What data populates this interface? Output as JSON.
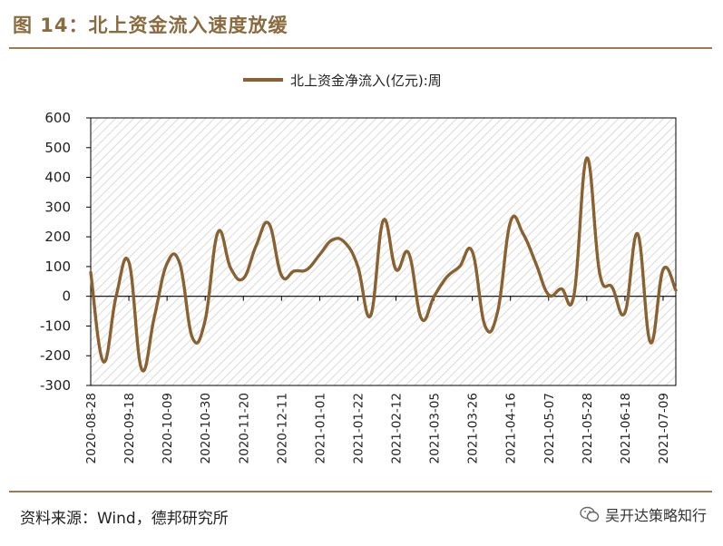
{
  "figure": {
    "title": "图 14：北上资金流入速度放缓",
    "source": "资料来源：Wind，德邦研究所",
    "watermark": "吴开达策略知行",
    "watermark_icon": "wechat-icon"
  },
  "colors": {
    "accent": "#8B6A3E",
    "line": "#8A6232",
    "rule": "#9E7B53",
    "hatch": "#DADADA"
  },
  "chart_data": {
    "type": "line",
    "legend": "北上资金净流入(亿元):周",
    "legend_position": "top-center",
    "ylim": [
      -300,
      600
    ],
    "yticks": [
      -300,
      -200,
      -100,
      0,
      100,
      200,
      300,
      400,
      500,
      600
    ],
    "xtick_labels": [
      "2020-08-28",
      "2020-09-18",
      "2020-10-09",
      "2020-10-30",
      "2020-11-20",
      "2020-12-11",
      "2021-01-01",
      "2021-01-22",
      "2021-02-12",
      "2021-03-05",
      "2021-03-26",
      "2021-04-16",
      "2021-05-07",
      "2021-05-28",
      "2021-06-18",
      "2021-07-09"
    ],
    "grid": false,
    "background": "hatched",
    "series": [
      {
        "name": "北上资金净流入(亿元):周",
        "x": [
          "2020-08-28",
          "2020-09-04",
          "2020-09-11",
          "2020-09-18",
          "2020-09-25",
          "2020-10-02",
          "2020-10-09",
          "2020-10-16",
          "2020-10-23",
          "2020-10-30",
          "2020-11-06",
          "2020-11-13",
          "2020-11-20",
          "2020-11-27",
          "2020-12-04",
          "2020-12-11",
          "2020-12-18",
          "2020-12-25",
          "2021-01-01",
          "2021-01-08",
          "2021-01-15",
          "2021-01-22",
          "2021-01-29",
          "2021-02-05",
          "2021-02-12",
          "2021-02-19",
          "2021-02-26",
          "2021-03-05",
          "2021-03-12",
          "2021-03-19",
          "2021-03-26",
          "2021-04-02",
          "2021-04-09",
          "2021-04-16",
          "2021-04-23",
          "2021-04-30",
          "2021-05-07",
          "2021-05-14",
          "2021-05-21",
          "2021-05-28",
          "2021-06-04",
          "2021-06-11",
          "2021-06-18",
          "2021-06-25",
          "2021-07-02",
          "2021-07-09",
          "2021-07-16"
        ],
        "values": [
          80,
          -220,
          0,
          115,
          -245,
          -70,
          110,
          110,
          -140,
          -80,
          215,
          95,
          60,
          170,
          245,
          70,
          85,
          90,
          140,
          190,
          180,
          100,
          -65,
          255,
          90,
          145,
          -75,
          0,
          65,
          100,
          150,
          -100,
          -50,
          250,
          210,
          110,
          5,
          25,
          5,
          465,
          80,
          30,
          -55,
          210,
          -155,
          90,
          20
        ]
      }
    ]
  }
}
